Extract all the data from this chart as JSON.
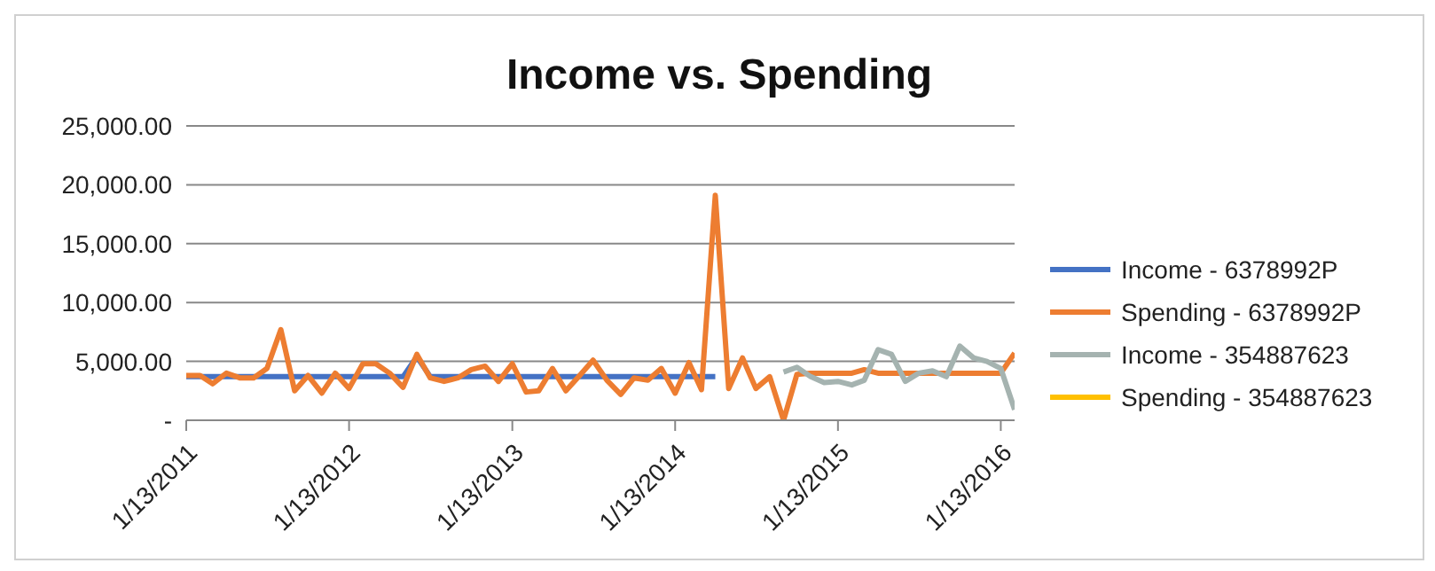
{
  "chart_data": {
    "type": "line",
    "title": "Income vs. Spending",
    "x": [
      "2011-01-13",
      "2011-02-13",
      "2011-03-13",
      "2011-04-13",
      "2011-05-13",
      "2011-06-13",
      "2011-07-13",
      "2011-08-13",
      "2011-09-13",
      "2011-10-13",
      "2011-11-13",
      "2011-12-13",
      "2012-01-13",
      "2012-02-13",
      "2012-03-13",
      "2012-04-13",
      "2012-05-13",
      "2012-06-13",
      "2012-07-13",
      "2012-08-13",
      "2012-09-13",
      "2012-10-13",
      "2012-11-13",
      "2012-12-13",
      "2013-01-13",
      "2013-02-13",
      "2013-03-13",
      "2013-04-13",
      "2013-05-13",
      "2013-06-13",
      "2013-07-13",
      "2013-08-13",
      "2013-09-13",
      "2013-10-13",
      "2013-11-13",
      "2013-12-13",
      "2014-01-13",
      "2014-02-13",
      "2014-03-13",
      "2014-04-13",
      "2014-05-13",
      "2014-06-13",
      "2014-07-13",
      "2014-08-13",
      "2014-09-13",
      "2014-10-13",
      "2014-11-13",
      "2014-12-13",
      "2015-01-13",
      "2015-02-13",
      "2015-03-13",
      "2015-04-13",
      "2015-05-13",
      "2015-06-13",
      "2015-07-13",
      "2015-08-13",
      "2015-09-13",
      "2015-10-13",
      "2015-11-13",
      "2015-12-13",
      "2016-01-13",
      "2016-02-13"
    ],
    "series": [
      {
        "name": "Income - 6378992P",
        "color": "#4472c4",
        "values": [
          3700,
          3700,
          3700,
          3700,
          3700,
          3700,
          3700,
          3700,
          3700,
          3700,
          3700,
          3700,
          3700,
          3700,
          3700,
          3700,
          3700,
          5400,
          3700,
          3700,
          3700,
          3700,
          3700,
          3700,
          3700,
          3700,
          3700,
          3700,
          3700,
          3700,
          3700,
          3700,
          3700,
          3700,
          3700,
          3700,
          3700,
          3700,
          3700,
          3700,
          null,
          null,
          null,
          null,
          null,
          null,
          null,
          null,
          null,
          null,
          null,
          null,
          null,
          null,
          null,
          null,
          null,
          null,
          null,
          null,
          null,
          null
        ]
      },
      {
        "name": "Spending - 6378992P",
        "color": "#ed7d31",
        "values": [
          3800,
          3800,
          3100,
          4000,
          3600,
          3600,
          4400,
          7700,
          2500,
          3800,
          2300,
          4000,
          2700,
          4800,
          4800,
          4000,
          2800,
          5600,
          3600,
          3300,
          3600,
          4300,
          4600,
          3300,
          4800,
          2400,
          2500,
          4400,
          2500,
          3800,
          5100,
          3400,
          2200,
          3600,
          3400,
          4400,
          2300,
          4900,
          2600,
          19100,
          2700,
          5300,
          2700,
          3700,
          0,
          3900,
          4000,
          4000,
          4000,
          4000,
          4300,
          4000,
          4000,
          4000,
          4000,
          4000,
          4000,
          4000,
          4000,
          4000,
          4000,
          5700
        ]
      },
      {
        "name": "Income - 354887623",
        "color": "#a5b3b0",
        "values": [
          null,
          null,
          null,
          null,
          null,
          null,
          null,
          null,
          null,
          null,
          null,
          null,
          null,
          null,
          null,
          null,
          null,
          null,
          null,
          null,
          null,
          null,
          null,
          null,
          null,
          null,
          null,
          null,
          null,
          null,
          null,
          null,
          null,
          null,
          null,
          null,
          null,
          null,
          null,
          null,
          null,
          null,
          null,
          null,
          4100,
          4500,
          3700,
          3200,
          3300,
          3000,
          3400,
          6000,
          5600,
          3300,
          4000,
          4200,
          3700,
          6300,
          5300,
          5000,
          4400,
          900
        ]
      },
      {
        "name": "Spending - 354887623",
        "color": "#ffc000",
        "values": [
          null,
          null,
          null,
          null,
          null,
          null,
          null,
          null,
          null,
          null,
          null,
          null,
          null,
          null,
          null,
          null,
          null,
          null,
          null,
          null,
          null,
          null,
          null,
          null,
          null,
          null,
          null,
          null,
          null,
          null,
          null,
          null,
          null,
          null,
          null,
          null,
          null,
          null,
          null,
          null,
          null,
          null,
          null,
          null,
          null,
          null,
          null,
          null,
          null,
          null,
          null,
          null,
          null,
          null,
          null,
          null,
          null,
          null,
          null,
          null,
          null,
          null
        ]
      }
    ],
    "xlim": [
      "2011-01-13",
      "2016-02-13"
    ],
    "xticks": [
      {
        "value": "2011-01-13",
        "label": "1/13/2011"
      },
      {
        "value": "2012-01-13",
        "label": "1/13/2012"
      },
      {
        "value": "2013-01-13",
        "label": "1/13/2013"
      },
      {
        "value": "2014-01-13",
        "label": "1/13/2014"
      },
      {
        "value": "2015-01-13",
        "label": "1/13/2015"
      },
      {
        "value": "2016-01-13",
        "label": "1/13/2016"
      }
    ],
    "ylim": [
      0,
      25000
    ],
    "yticks": [
      {
        "value": 0,
        "label": "-"
      },
      {
        "value": 5000,
        "label": "5,000.00"
      },
      {
        "value": 10000,
        "label": "10,000.00"
      },
      {
        "value": 15000,
        "label": "15,000.00"
      },
      {
        "value": 20000,
        "label": "20,000.00"
      },
      {
        "value": 25000,
        "label": "25,000.00"
      }
    ],
    "grid": "y",
    "legend": "right",
    "marker": "none",
    "line_style": "solid"
  }
}
